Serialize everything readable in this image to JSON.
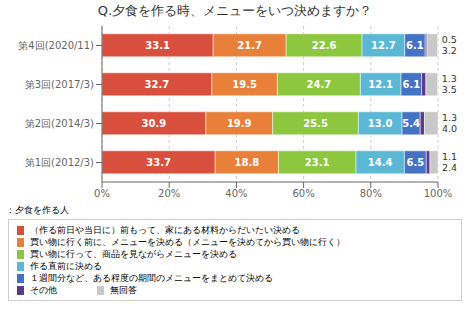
{
  "chart_data": {
    "type": "bar",
    "title": "Q.夕食を作る時、メニューをいつ決めますか？",
    "orientation": "horizontal",
    "stacked": true,
    "data_labels": true,
    "grid": true,
    "legend": "bottom",
    "categories": [
      "第4回(2020/11)",
      "第3回(2017/3)",
      "第2回(2014/3)",
      "第1回(2012/3)"
    ],
    "series": [
      {
        "name": "（作る前日や当日に）前もって、家にある材料からだいたい決める",
        "color": "#D94F3D",
        "values": [
          33.1,
          32.7,
          30.9,
          33.7
        ],
        "value_labels": [
          "33.1",
          "32.7",
          "30.9",
          "33.7"
        ]
      },
      {
        "name": "買い物に行く前に、メニューを決める（メニューを決めてから買い物に行く）",
        "color": "#E8803A",
        "values": [
          21.7,
          19.5,
          19.9,
          18.8
        ],
        "value_labels": [
          "21.7",
          "19.5",
          "19.9",
          "18.8"
        ]
      },
      {
        "name": "買い物に行って、商品を見ながらメニューを決める",
        "color": "#8DC63F",
        "values": [
          22.6,
          24.7,
          25.5,
          23.1
        ],
        "value_labels": [
          "22.6",
          "24.7",
          "25.5",
          "23.1"
        ]
      },
      {
        "name": "作る直前に決める",
        "color": "#5BB8D4",
        "values": [
          12.7,
          12.1,
          13.0,
          14.4
        ],
        "value_labels": [
          "12.7",
          "12.1",
          "13.0",
          "14.4"
        ]
      },
      {
        "name": "１週間分など、ある程度の期間のメニューをまとめて決める",
        "color": "#4472C4",
        "values": [
          6.1,
          6.1,
          5.4,
          6.5
        ],
        "value_labels": [
          "6.1",
          "6.1",
          "5.4",
          "6.5"
        ]
      },
      {
        "name": "その他",
        "color": "#5B3C8C",
        "values": [
          0.5,
          1.3,
          1.3,
          1.1
        ],
        "value_labels": [
          "0.5",
          "1.3",
          "1.3",
          "1.1"
        ]
      },
      {
        "name": "無回答",
        "color": "#C8C8C8",
        "values": [
          3.2,
          3.5,
          4.0,
          2.4
        ],
        "value_labels": [
          "3.2",
          "3.5",
          "4.0",
          "2.4"
        ]
      }
    ],
    "xlim": [
      0,
      100
    ],
    "xticks": [
      {
        "value": 0,
        "label": "0%"
      },
      {
        "value": 20,
        "label": "20%"
      },
      {
        "value": 40,
        "label": "40%"
      },
      {
        "value": 60,
        "label": "60%"
      },
      {
        "value": 80,
        "label": "80%"
      },
      {
        "value": 100,
        "label": "100%"
      }
    ],
    "annotations": [
      "：夕食を作る人"
    ]
  }
}
